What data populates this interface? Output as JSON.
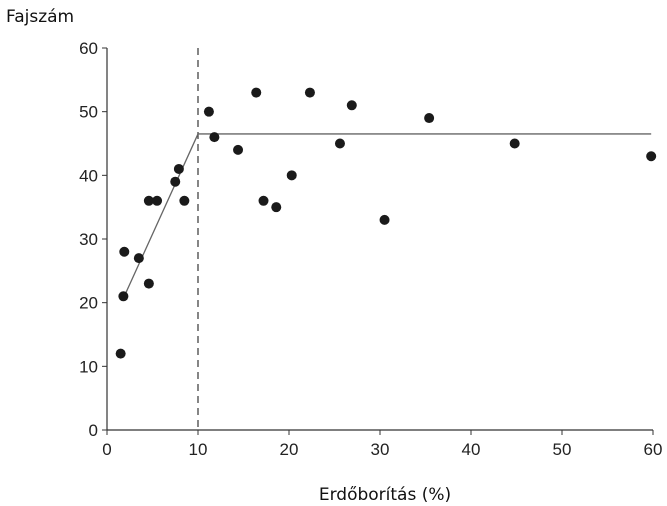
{
  "chart_data": {
    "type": "scatter",
    "title": "",
    "xlabel": "Erdőborítás (%)",
    "ylabel": "Fajszám",
    "xlim": [
      0,
      60
    ],
    "ylim": [
      0,
      60
    ],
    "x_ticks": [
      "0",
      "10",
      "20",
      "30",
      "40",
      "50",
      "60"
    ],
    "y_ticks": [
      "0",
      "10",
      "20",
      "30",
      "40",
      "50",
      "60"
    ],
    "grid": false,
    "points": [
      {
        "x": 1.5,
        "y": 12
      },
      {
        "x": 1.8,
        "y": 21
      },
      {
        "x": 1.9,
        "y": 28
      },
      {
        "x": 3.5,
        "y": 27
      },
      {
        "x": 4.6,
        "y": 23
      },
      {
        "x": 4.6,
        "y": 36
      },
      {
        "x": 5.5,
        "y": 36
      },
      {
        "x": 7.5,
        "y": 39
      },
      {
        "x": 7.9,
        "y": 41
      },
      {
        "x": 8.5,
        "y": 36
      },
      {
        "x": 11.2,
        "y": 50
      },
      {
        "x": 11.8,
        "y": 46
      },
      {
        "x": 14.4,
        "y": 44
      },
      {
        "x": 16.4,
        "y": 53
      },
      {
        "x": 17.2,
        "y": 36
      },
      {
        "x": 18.6,
        "y": 35
      },
      {
        "x": 20.3,
        "y": 40
      },
      {
        "x": 22.3,
        "y": 53
      },
      {
        "x": 25.6,
        "y": 45
      },
      {
        "x": 26.9,
        "y": 51
      },
      {
        "x": 30.5,
        "y": 33
      },
      {
        "x": 35.4,
        "y": 49
      },
      {
        "x": 44.8,
        "y": 45
      },
      {
        "x": 59.8,
        "y": 43
      }
    ],
    "fit_lines": [
      {
        "points": [
          [
            1.9,
            21
          ],
          [
            10,
            46.5
          ]
        ]
      },
      {
        "points": [
          [
            10,
            46.5
          ],
          [
            59.8,
            46.5
          ]
        ]
      }
    ],
    "threshold_line": {
      "x": 10,
      "style": "dashed"
    }
  }
}
